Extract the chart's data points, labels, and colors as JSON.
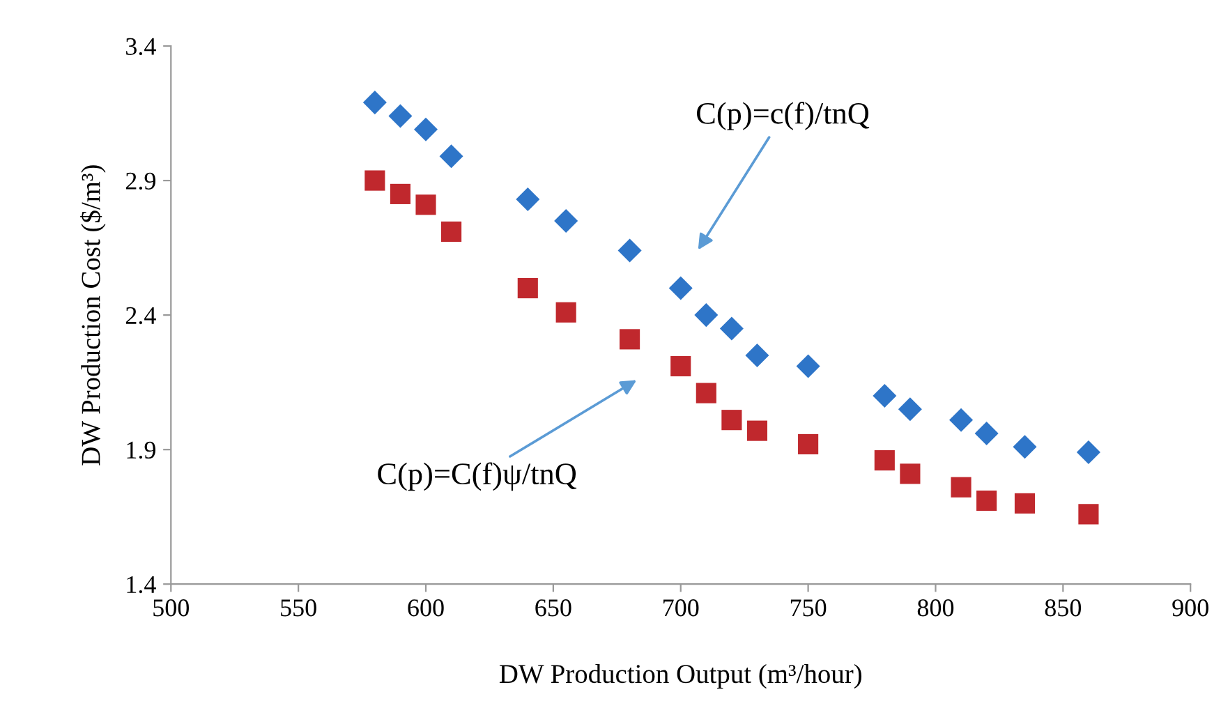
{
  "chart_data": {
    "type": "scatter",
    "xlabel": "DW Production Output (m³/hour)",
    "ylabel": "DW Production Cost ($/m³)",
    "xlim": [
      500,
      900
    ],
    "xticks": [
      500,
      550,
      600,
      650,
      700,
      750,
      800,
      850,
      900
    ],
    "ylim": [
      1.4,
      3.4
    ],
    "yticks": [
      1.4,
      1.9,
      2.4,
      2.9,
      3.4
    ],
    "grid": false,
    "series": [
      {
        "color": "#2e75c8",
        "marker": "diamond",
        "x": [
          580,
          590,
          600,
          610,
          640,
          655,
          680,
          700,
          710,
          720,
          730,
          750,
          780,
          790,
          810,
          820,
          835,
          860
        ],
        "values": [
          3.19,
          3.14,
          3.09,
          2.99,
          2.83,
          2.75,
          2.64,
          2.5,
          2.4,
          2.35,
          2.25,
          2.21,
          2.1,
          2.05,
          2.01,
          1.96,
          1.91,
          1.89
        ]
      },
      {
        "color": "#c0282d",
        "marker": "square",
        "x": [
          580,
          590,
          600,
          610,
          640,
          655,
          680,
          700,
          710,
          720,
          730,
          750,
          780,
          790,
          810,
          820,
          835,
          860
        ],
        "values": [
          2.9,
          2.85,
          2.81,
          2.71,
          2.5,
          2.41,
          2.31,
          2.21,
          2.11,
          2.01,
          1.97,
          1.92,
          1.86,
          1.81,
          1.76,
          1.71,
          1.7,
          1.66
        ]
      }
    ],
    "annotations": [
      "C(p)=c(f)/tnQ",
      "C(p)=C(f)ψ/tnQ"
    ]
  }
}
